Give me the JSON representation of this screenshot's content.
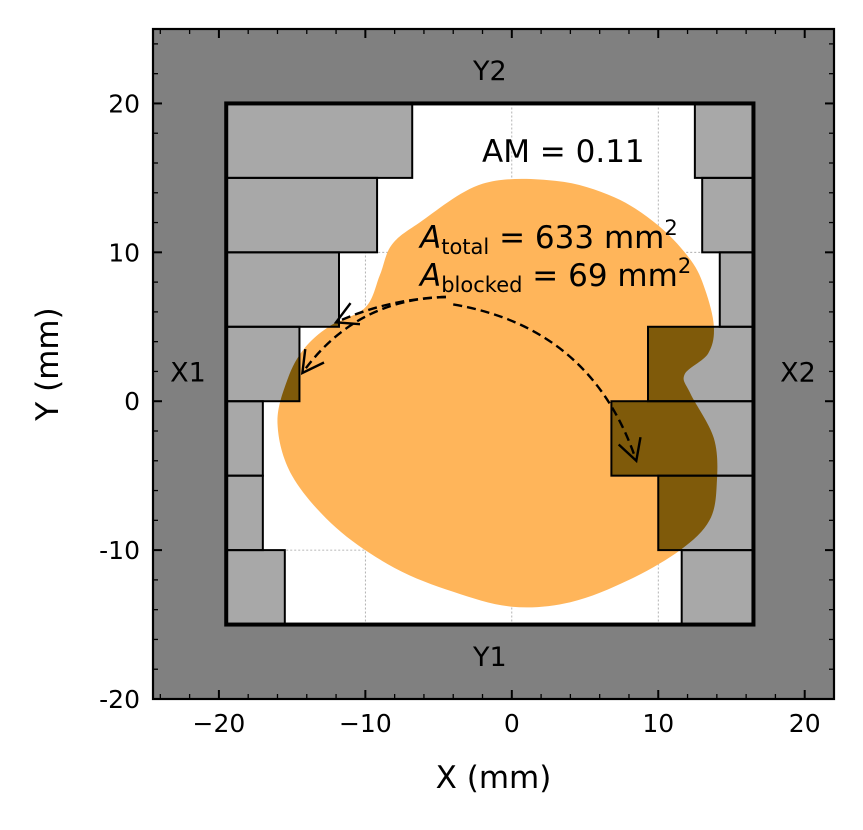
{
  "chart_data": {
    "type": "diagram",
    "xlabel": "X (mm)",
    "ylabel": "Y (mm)",
    "xlim": [
      -24.5,
      22
    ],
    "ylim": [
      -20,
      25
    ],
    "x_ticks": [
      -20,
      -10,
      0,
      10,
      20
    ],
    "x_tick_labels": [
      "−20",
      "−10",
      "0",
      "10",
      "20"
    ],
    "y_ticks": [
      -20,
      -10,
      0,
      10,
      20
    ],
    "y_tick_labels": [
      "-20",
      "-10",
      "0",
      "10",
      "20"
    ],
    "jaws": {
      "x1": -19.5,
      "x2": 16.5,
      "y1": -15,
      "y2": 20
    },
    "jaw_labels": {
      "x1": "X1",
      "x2": "X2",
      "y1": "Y1",
      "y2": "Y2"
    },
    "leaf_width": 5,
    "left_leaves": [
      {
        "y_min": 15,
        "y_max": 20,
        "tip": -6.8
      },
      {
        "y_min": 10,
        "y_max": 15,
        "tip": -9.2
      },
      {
        "y_min": 5,
        "y_max": 10,
        "tip": -11.8
      },
      {
        "y_min": 0,
        "y_max": 5,
        "tip": -14.5
      },
      {
        "y_min": -5,
        "y_max": 0,
        "tip": -17.0
      },
      {
        "y_min": -10,
        "y_max": -5,
        "tip": -17.0
      },
      {
        "y_min": -15,
        "y_max": -10,
        "tip": -15.5
      }
    ],
    "right_leaves": [
      {
        "y_min": 15,
        "y_max": 20,
        "tip": 12.5
      },
      {
        "y_min": 10,
        "y_max": 15,
        "tip": 13.0
      },
      {
        "y_min": 5,
        "y_max": 10,
        "tip": 14.2
      },
      {
        "y_min": 0,
        "y_max": 5,
        "tip": 9.3
      },
      {
        "y_min": -5,
        "y_max": 0,
        "tip": 6.8
      },
      {
        "y_min": -10,
        "y_max": -5,
        "tip": 10.0
      },
      {
        "y_min": -15,
        "y_max": -10,
        "tip": 11.6
      }
    ],
    "target_outline": [
      [
        -2,
        14.6
      ],
      [
        3,
        14.8
      ],
      [
        7,
        13.7
      ],
      [
        10,
        11.8
      ],
      [
        12.2,
        9.5
      ],
      [
        13.2,
        7.5
      ],
      [
        13.8,
        5.0
      ],
      [
        13.4,
        3.2
      ],
      [
        11.8,
        1.8
      ],
      [
        12.2,
        0.5
      ],
      [
        13.8,
        -2.5
      ],
      [
        14.0,
        -5.5
      ],
      [
        13.5,
        -8.0
      ],
      [
        11.5,
        -10.0
      ],
      [
        8,
        -12.0
      ],
      [
        4,
        -13.5
      ],
      [
        0,
        -13.8
      ],
      [
        -4,
        -12.8
      ],
      [
        -8,
        -11.2
      ],
      [
        -12,
        -8.5
      ],
      [
        -15,
        -5.0
      ],
      [
        -16.0,
        -1.5
      ],
      [
        -15.3,
        1.5
      ],
      [
        -14.2,
        3.5
      ],
      [
        -12.5,
        5.0
      ],
      [
        -10,
        6.3
      ],
      [
        -9,
        8.5
      ],
      [
        -8.2,
        10.5
      ],
      [
        -6.3,
        12.0
      ]
    ],
    "annotations": {
      "am": "AM = 0.11",
      "a_total_symbol": "A",
      "a_total_sub": "total",
      "a_total_value": " = 633 mm",
      "a_total_sup": "2",
      "a_blocked_symbol": "A",
      "a_blocked_sub": "blocked",
      "a_blocked_value": " = 69 mm",
      "a_blocked_sup": "2"
    },
    "arrows": [
      {
        "from": [
          -4.5,
          7.0
        ],
        "to": [
          -12.0,
          5.3
        ],
        "bend": 0.1
      },
      {
        "from": [
          -4.5,
          7.0
        ],
        "to": [
          -14.3,
          1.9
        ],
        "bend": 0.25
      },
      {
        "from": [
          -4.0,
          6.5
        ],
        "to": [
          8.5,
          -4.0
        ],
        "bend": -0.3
      }
    ],
    "colors": {
      "outside": "#808080",
      "leaf": "#a8a8a8",
      "target": "#ffb55a",
      "blocked": "#7f5a0a",
      "field": "#ffffff",
      "line": "#000000",
      "grid": "#a0a0a0"
    }
  }
}
